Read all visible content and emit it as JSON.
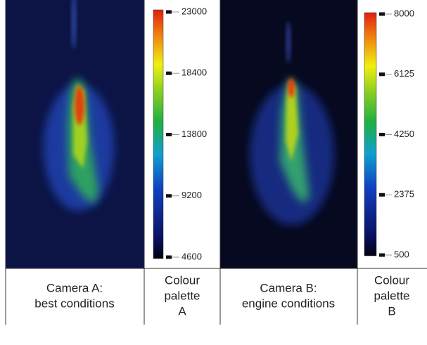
{
  "captions": [
    [
      "Camera A:",
      "best conditions"
    ],
    [
      "Colour",
      "palette",
      "A"
    ],
    [
      "Camera B:",
      "engine conditions"
    ],
    [
      "Colour",
      "palette",
      "B"
    ]
  ],
  "colorbars": [
    {
      "ticks": [
        4600,
        9200,
        13800,
        18400,
        23000
      ]
    },
    {
      "ticks": [
        500,
        2375,
        4250,
        6125,
        8000
      ]
    }
  ]
}
